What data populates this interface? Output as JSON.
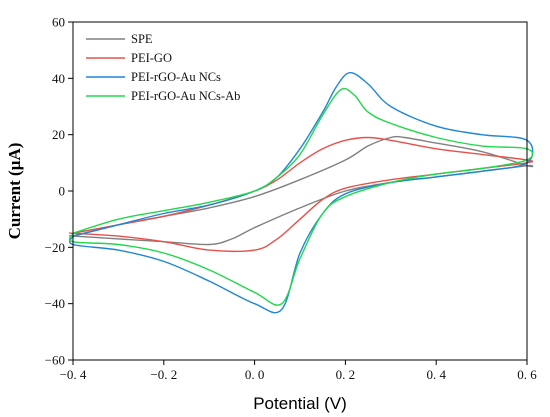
{
  "chart_data": {
    "type": "line",
    "title": "",
    "xlabel": "Potential (V)",
    "ylabel": "Current (µA)",
    "xlim": [
      -0.4,
      0.6
    ],
    "ylim": [
      -60,
      60
    ],
    "x_ticks": [
      -0.4,
      -0.2,
      0.0,
      0.2,
      0.4,
      0.6
    ],
    "x_tick_labels": [
      "−0. 4",
      "−0. 2",
      "0. 0",
      "0. 2",
      "0. 4",
      "0. 6"
    ],
    "y_ticks": [
      -60,
      -40,
      -20,
      0,
      20,
      40,
      60
    ],
    "y_tick_labels": [
      "−60",
      "−40",
      "−20",
      "0",
      "20",
      "40",
      "60"
    ],
    "grid": false,
    "legend_position": "top-left",
    "series": [
      {
        "name": "SPE",
        "color": "#808080",
        "x": [
          -0.4,
          -0.3,
          -0.2,
          -0.1,
          0.0,
          0.1,
          0.2,
          0.25,
          0.3,
          0.33,
          0.4,
          0.5,
          0.6,
          0.6,
          0.5,
          0.4,
          0.3,
          0.2,
          0.1,
          0.0,
          -0.05,
          -0.1,
          -0.2,
          -0.3,
          -0.4
        ],
        "y": [
          -16,
          -12,
          -9,
          -6,
          -2,
          4,
          11,
          16,
          19,
          19,
          17,
          14,
          9,
          9,
          7,
          5,
          3,
          0,
          -6,
          -13,
          -17,
          -19,
          -18,
          -17,
          -16
        ]
      },
      {
        "name": "PEI-GO",
        "color": "#e8504a",
        "x": [
          -0.4,
          -0.3,
          -0.2,
          -0.1,
          0.0,
          0.05,
          0.1,
          0.15,
          0.2,
          0.25,
          0.3,
          0.4,
          0.5,
          0.6,
          0.6,
          0.5,
          0.4,
          0.3,
          0.2,
          0.15,
          0.1,
          0.05,
          0.0,
          -0.1,
          -0.2,
          -0.3,
          -0.4
        ],
        "y": [
          -15,
          -12,
          -9,
          -5,
          0,
          4,
          10,
          15,
          18,
          19,
          18,
          15,
          13,
          11,
          10,
          8,
          6,
          4,
          1,
          -3,
          -10,
          -17,
          -21,
          -21,
          -18,
          -16,
          -15
        ]
      },
      {
        "name": "PEI-rGO-Au NCs",
        "color": "#1f86d6",
        "x": [
          -0.4,
          -0.3,
          -0.2,
          -0.1,
          0.0,
          0.05,
          0.1,
          0.15,
          0.18,
          0.21,
          0.25,
          0.3,
          0.4,
          0.5,
          0.6,
          0.6,
          0.5,
          0.4,
          0.3,
          0.2,
          0.15,
          0.1,
          0.06,
          0.0,
          -0.1,
          -0.2,
          -0.3,
          -0.4
        ],
        "y": [
          -16,
          -12,
          -8,
          -5,
          0,
          5,
          15,
          28,
          37,
          42,
          38,
          30,
          23,
          20,
          18,
          10,
          7,
          5,
          3,
          -1,
          -8,
          -22,
          -42,
          -40,
          -32,
          -25,
          -21,
          -19
        ]
      },
      {
        "name": "PEI-rGO-Au NCs-Ab",
        "color": "#20d84a",
        "x": [
          -0.4,
          -0.3,
          -0.2,
          -0.1,
          0.0,
          0.05,
          0.1,
          0.15,
          0.19,
          0.22,
          0.25,
          0.3,
          0.4,
          0.5,
          0.6,
          0.6,
          0.5,
          0.4,
          0.3,
          0.2,
          0.15,
          0.1,
          0.06,
          0.0,
          -0.1,
          -0.2,
          -0.3,
          -0.4
        ],
        "y": [
          -15,
          -10,
          -7,
          -4,
          0,
          5,
          13,
          27,
          36,
          34,
          28,
          24,
          19,
          16,
          15,
          11,
          8,
          6,
          3,
          -2,
          -8,
          -24,
          -40,
          -36,
          -28,
          -22,
          -19,
          -18
        ]
      }
    ]
  }
}
